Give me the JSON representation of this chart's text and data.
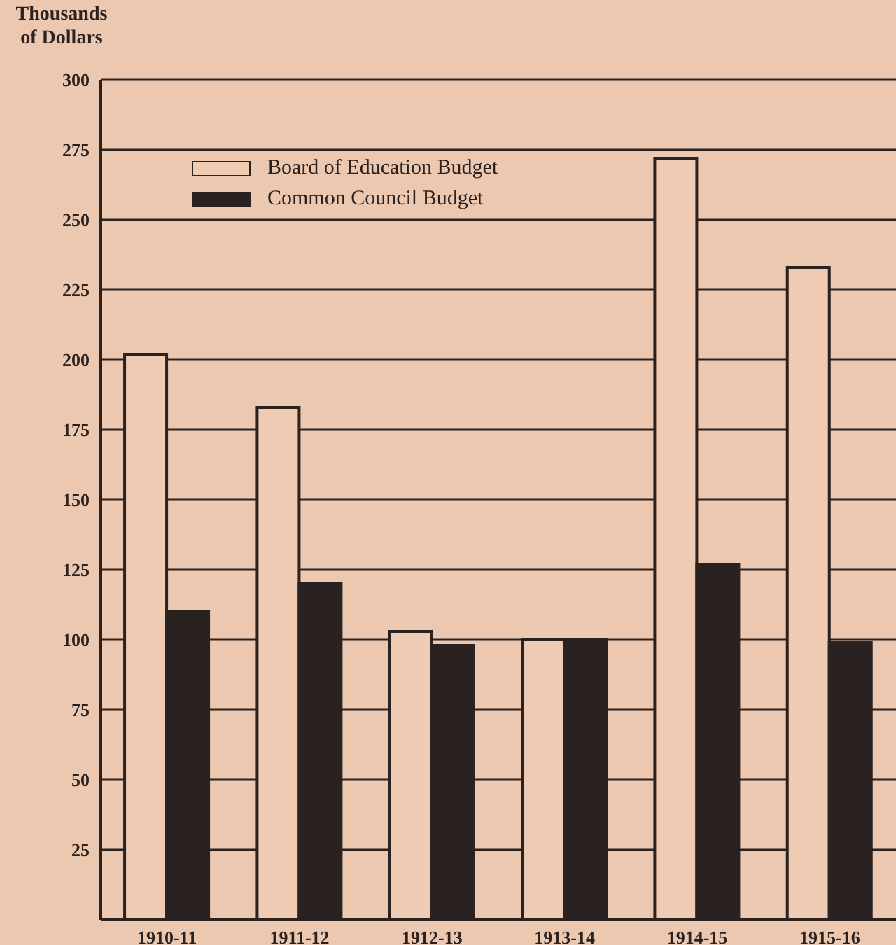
{
  "chart_data": {
    "type": "bar",
    "ylabel": "Thousands of Dollars",
    "categories": [
      "1910-11",
      "1911-12",
      "1912-13",
      "1913-14",
      "1914-15",
      "1915-16"
    ],
    "series": [
      {
        "name": "Board of Education Budget",
        "color": "#f0cbb3",
        "values": [
          202,
          183,
          103,
          100,
          272,
          233
        ]
      },
      {
        "name": "Common Council Budget",
        "color": "#2a2220",
        "values": [
          110,
          120,
          98,
          100,
          127,
          99
        ]
      }
    ],
    "ylim": [
      0,
      300
    ],
    "yticks": [
      25,
      50,
      75,
      100,
      125,
      150,
      175,
      200,
      225,
      250,
      275,
      300
    ],
    "grid": "y",
    "legend": "top left"
  }
}
